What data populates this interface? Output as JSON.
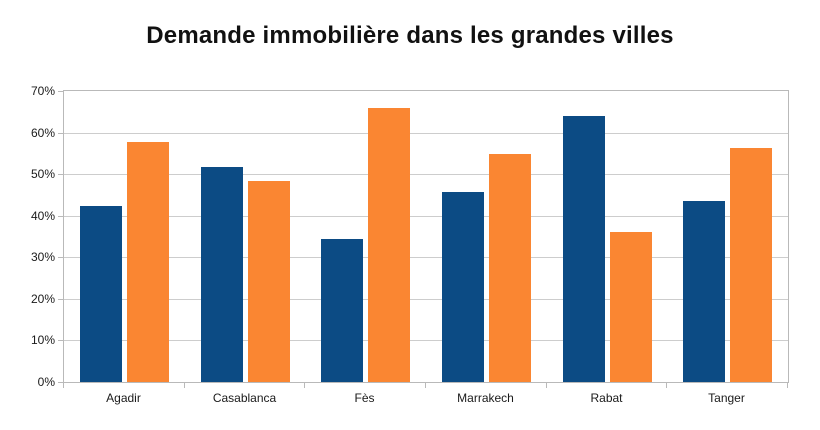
{
  "chart_data": {
    "type": "bar",
    "title": "Demande immobilière dans les grandes villes",
    "categories": [
      "Agadir",
      "Casablanca",
      "Fès",
      "Marrakech",
      "Rabat",
      "Tanger"
    ],
    "series": [
      {
        "name": "blue-series",
        "color": "#0c4b84",
        "values": [
          42.3,
          51.6,
          34.4,
          45.7,
          63.9,
          43.6
        ]
      },
      {
        "name": "orange-series",
        "color": "#fa8632",
        "values": [
          57.8,
          48.4,
          66.0,
          54.8,
          36.2,
          56.4
        ]
      }
    ],
    "ylim": [
      0,
      70
    ],
    "ytick_step": 10,
    "ytick_labels": [
      "70%",
      "60%",
      "50%",
      "40%",
      "30%",
      "20%",
      "10%",
      "0%"
    ],
    "grid": true,
    "legend_position": "none",
    "gridline_color": "#cdcdcd",
    "axis_color": "#b9b9b9",
    "text_color": "#1a1a1a"
  }
}
